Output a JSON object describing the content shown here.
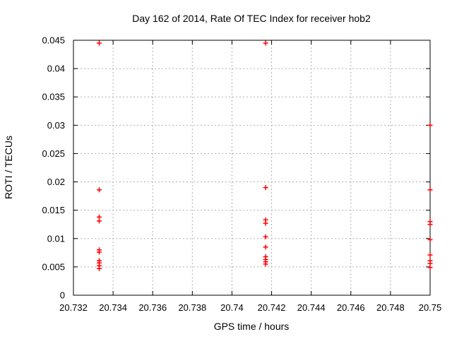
{
  "chart_data": {
    "type": "scatter",
    "title": "Day 162 of 2014, Rate Of TEC Index for receiver hob2",
    "xlabel": "GPS time / hours",
    "ylabel": "ROTI / TECUs",
    "xlim": [
      20.732,
      20.75
    ],
    "ylim": [
      0,
      0.045
    ],
    "xtick_values": [
      20.732,
      20.734,
      20.736,
      20.738,
      20.74,
      20.742,
      20.744,
      20.746,
      20.748,
      20.75
    ],
    "xtick_labels": [
      "20.732",
      "20.734",
      "20.736",
      "20.738",
      "20.74",
      "20.742",
      "20.744",
      "20.746",
      "20.748",
      "20.75"
    ],
    "ytick_values": [
      0,
      0.005,
      0.01,
      0.015,
      0.02,
      0.025,
      0.03,
      0.035,
      0.04,
      0.045
    ],
    "ytick_labels": [
      "0",
      "0.005",
      "0.01",
      "0.015",
      "0.02",
      "0.025",
      "0.03",
      "0.035",
      "0.04",
      "0.045"
    ],
    "grid": true,
    "legend_position": "none",
    "marker": "plus",
    "marker_color": "#ff0000",
    "axis_color": "#000000",
    "grid_color": "#b0b0b0",
    "series": [
      {
        "name": "ROTI",
        "x": [
          20.7333,
          20.7333,
          20.7333,
          20.7333,
          20.7333,
          20.7333,
          20.7333,
          20.7333,
          20.7333,
          20.7333,
          20.7417,
          20.7417,
          20.7417,
          20.7417,
          20.7417,
          20.7417,
          20.7417,
          20.7417,
          20.7417,
          20.7417,
          20.75,
          20.75,
          20.75,
          20.75,
          20.75,
          20.75,
          20.75,
          20.75,
          20.75
        ],
        "y": [
          0.0445,
          0.0186,
          0.0138,
          0.0131,
          0.008,
          0.0076,
          0.0061,
          0.0057,
          0.0052,
          0.0047,
          0.0445,
          0.019,
          0.0133,
          0.0127,
          0.0103,
          0.0085,
          0.0068,
          0.0063,
          0.0059,
          0.0055,
          0.03,
          0.0186,
          0.013,
          0.0125,
          0.0098,
          0.0071,
          0.0061,
          0.0056,
          0.0049
        ]
      }
    ]
  }
}
